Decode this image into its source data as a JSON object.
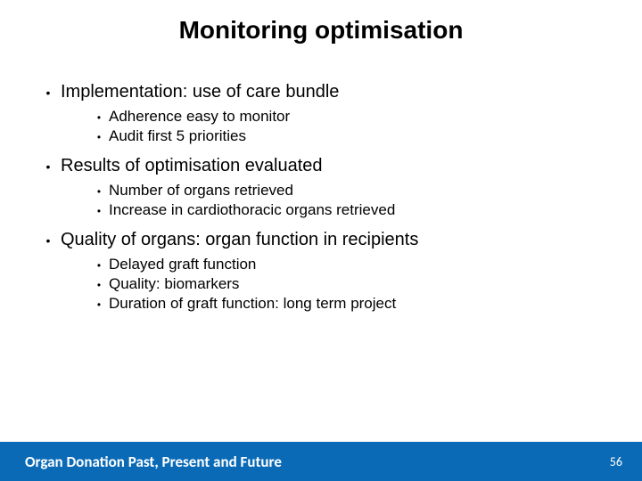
{
  "title": "Monitoring optimisation",
  "bullets": [
    {
      "text": "Implementation: use of care bundle",
      "children": [
        {
          "text": "Adherence easy to monitor"
        },
        {
          "text": "Audit first 5 priorities"
        }
      ]
    },
    {
      "text": "Results of optimisation evaluated",
      "children": [
        {
          "text": "Number of organs retrieved"
        },
        {
          "text": "Increase in cardiothoracic organs retrieved"
        }
      ]
    },
    {
      "text": "Quality of organs: organ function in recipients",
      "children": [
        {
          "text": "Delayed graft function"
        },
        {
          "text": "Quality: biomarkers"
        },
        {
          "text": "Duration of graft function: long term project"
        }
      ]
    }
  ],
  "footer": {
    "left": "Organ Donation Past, Present and Future",
    "page": "56",
    "bg_color": "#0a6ab6",
    "text_color": "#ffffff"
  },
  "style": {
    "title_fontsize": 28,
    "level1_fontsize": 20,
    "level2_fontsize": 17,
    "title_color": "#000000",
    "text_color": "#000000",
    "background_color": "#ffffff"
  }
}
